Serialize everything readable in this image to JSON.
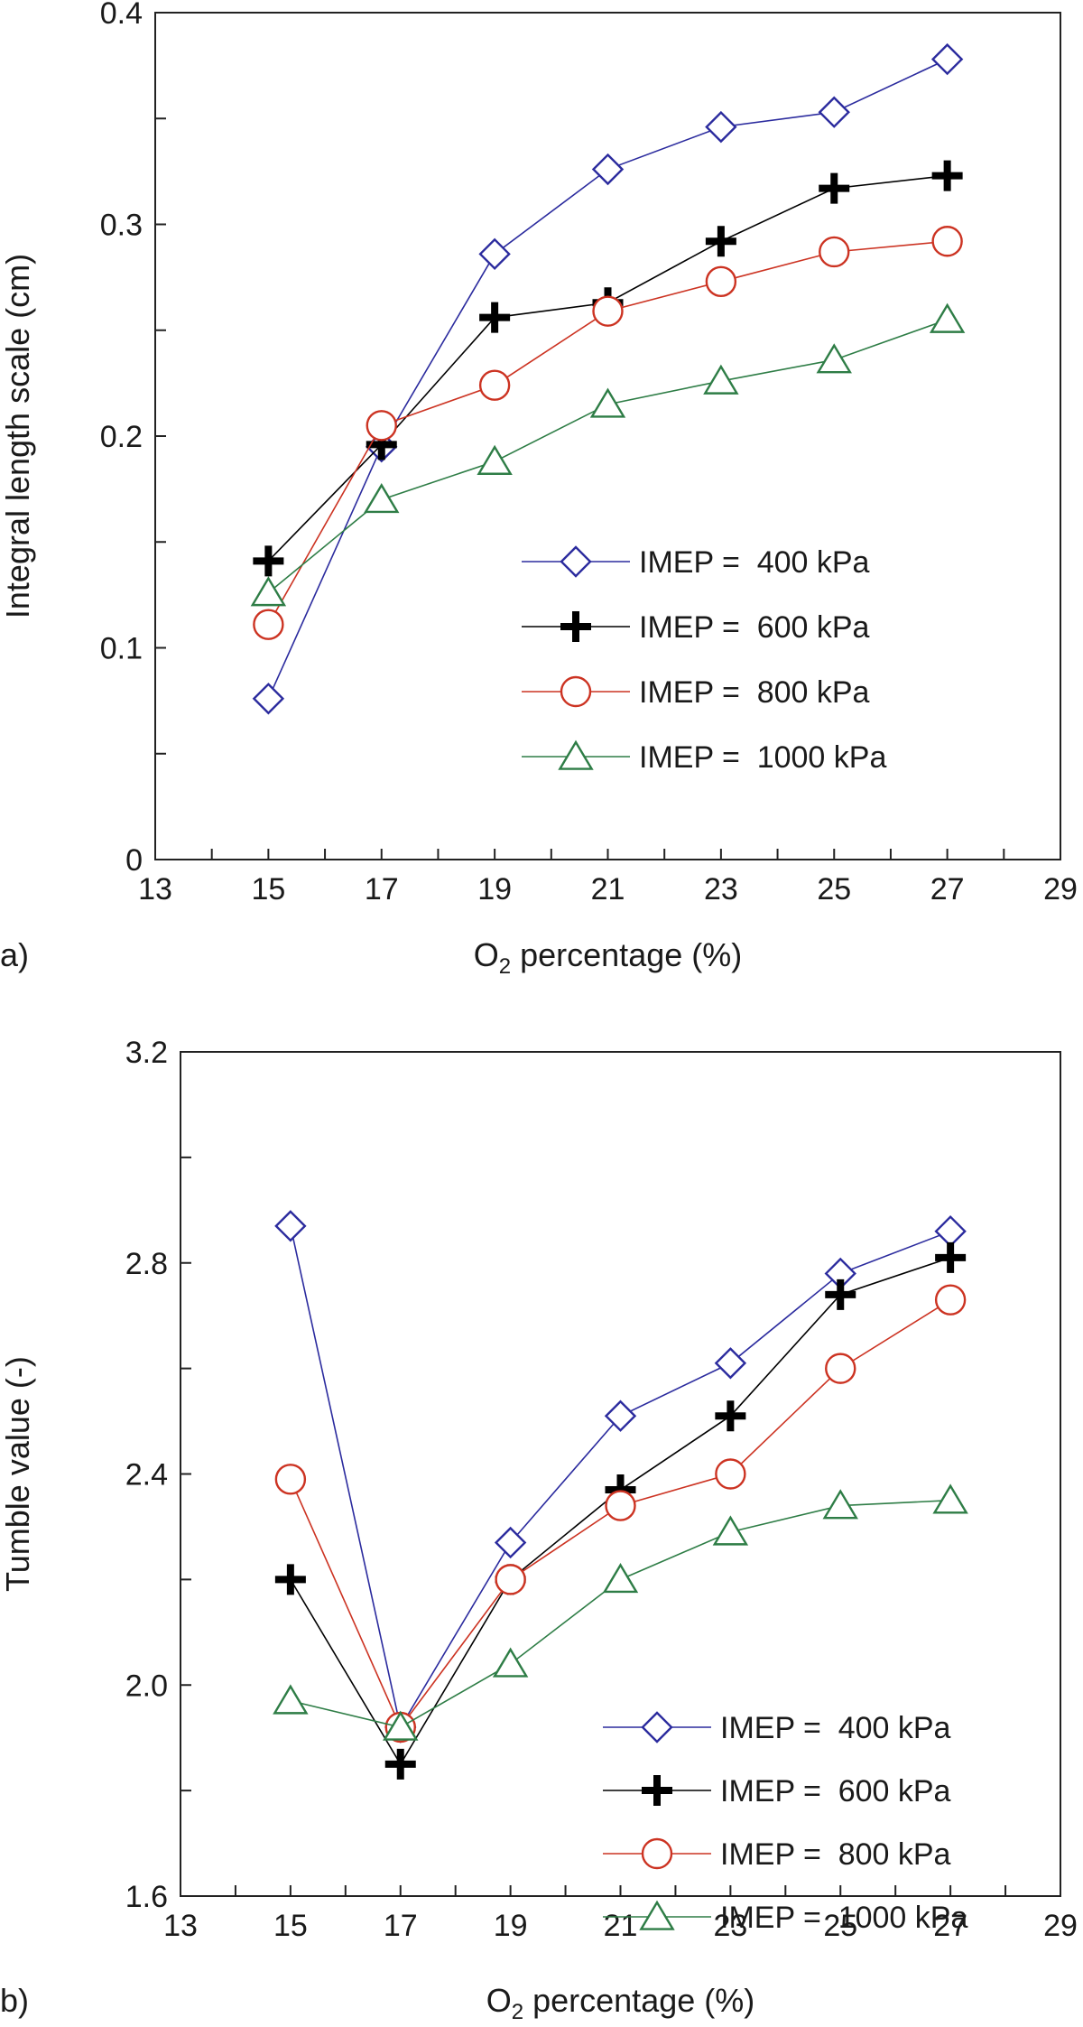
{
  "chart_data": [
    {
      "type": "line",
      "panel_label": "a)",
      "xlabel_main": "O",
      "xlabel_sub": "2",
      "xlabel_rest": " percentage (%)",
      "ylabel": "Integral length scale (cm)",
      "xlim": [
        13,
        29
      ],
      "ylim": [
        0,
        0.4
      ],
      "xticks": [
        13,
        15,
        17,
        19,
        21,
        23,
        25,
        27,
        29
      ],
      "xtick_labels": [
        "13",
        "15",
        "17",
        "19",
        "21",
        "23",
        "25",
        "27",
        "29"
      ],
      "yticks": [
        0,
        0.1,
        0.2,
        0.3,
        0.4
      ],
      "ytick_labels": [
        "0",
        "0.1",
        "0.2",
        "0.3",
        "0.4"
      ],
      "legend_position": "center-right",
      "series": [
        {
          "name": "IMEP =  400 kPa",
          "marker": "diamond",
          "color": "#2b2b9e",
          "x": [
            15,
            17,
            19,
            21,
            23,
            25,
            27
          ],
          "y": [
            0.076,
            0.195,
            0.286,
            0.326,
            0.346,
            0.353,
            0.378
          ]
        },
        {
          "name": "IMEP =  600 kPa",
          "marker": "plus",
          "color": "#000000",
          "x": [
            15,
            17,
            19,
            21,
            23,
            25,
            27
          ],
          "y": [
            0.141,
            0.196,
            0.256,
            0.263,
            0.292,
            0.317,
            0.323
          ]
        },
        {
          "name": "IMEP =  800 kPa",
          "marker": "circle",
          "color": "#cc3322",
          "x": [
            15,
            17,
            19,
            21,
            23,
            25,
            27
          ],
          "y": [
            0.111,
            0.205,
            0.224,
            0.259,
            0.273,
            0.287,
            0.292
          ]
        },
        {
          "name": "IMEP =  1000 kPa",
          "marker": "triangle",
          "color": "#2e7d46",
          "x": [
            15,
            17,
            19,
            21,
            23,
            25,
            27
          ],
          "y": [
            0.126,
            0.17,
            0.188,
            0.215,
            0.226,
            0.236,
            0.255
          ]
        }
      ]
    },
    {
      "type": "line",
      "panel_label": "b)",
      "xlabel_main": "O",
      "xlabel_sub": "2",
      "xlabel_rest": " percentage (%)",
      "ylabel": "Tumble value (-)",
      "xlim": [
        13,
        29
      ],
      "ylim": [
        1.6,
        3.2
      ],
      "xticks": [
        13,
        15,
        17,
        19,
        21,
        23,
        25,
        27,
        29
      ],
      "xtick_labels": [
        "13",
        "15",
        "17",
        "19",
        "21",
        "23",
        "25",
        "27",
        "29"
      ],
      "yticks": [
        1.6,
        2.0,
        2.4,
        2.8,
        3.2
      ],
      "ytick_labels": [
        "1.6",
        "2.0",
        "2.4",
        "2.8",
        "3.2"
      ],
      "legend_position": "bottom-right",
      "series": [
        {
          "name": "IMEP =  400 kPa",
          "marker": "diamond",
          "color": "#2b2b9e",
          "x": [
            15,
            17,
            19,
            21,
            23,
            25,
            27
          ],
          "y": [
            2.87,
            1.92,
            2.27,
            2.51,
            2.61,
            2.78,
            2.86
          ]
        },
        {
          "name": "IMEP =  600 kPa",
          "marker": "plus",
          "color": "#000000",
          "x": [
            15,
            17,
            19,
            21,
            23,
            25,
            27
          ],
          "y": [
            2.2,
            1.85,
            2.2,
            2.37,
            2.51,
            2.74,
            2.81
          ]
        },
        {
          "name": "IMEP =  800 kPa",
          "marker": "circle",
          "color": "#cc3322",
          "x": [
            15,
            17,
            19,
            21,
            23,
            25,
            27
          ],
          "y": [
            2.39,
            1.92,
            2.2,
            2.34,
            2.4,
            2.6,
            2.73
          ]
        },
        {
          "name": "IMEP =  1000 kPa",
          "marker": "triangle",
          "color": "#2e7d46",
          "x": [
            15,
            17,
            19,
            21,
            23,
            25,
            27
          ],
          "y": [
            1.97,
            1.92,
            2.04,
            2.2,
            2.29,
            2.34,
            2.35
          ]
        }
      ]
    }
  ]
}
